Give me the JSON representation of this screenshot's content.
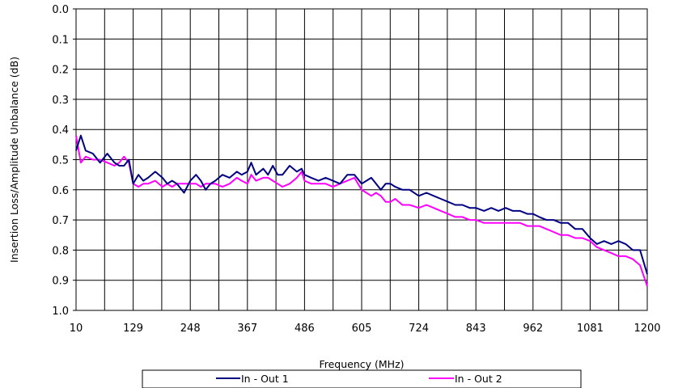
{
  "chart_data": {
    "type": "line",
    "xlabel": "Frequency (MHz)",
    "ylabel": "Insertion Loss/Amplitude Unbalance (dB)",
    "xlim": [
      10,
      1200
    ],
    "ylim": [
      0.0,
      1.0
    ],
    "y_reversed": true,
    "grid": true,
    "legend_position": "bottom",
    "x_ticks": [
      "10",
      "129",
      "248",
      "367",
      "486",
      "605",
      "724",
      "843",
      "962",
      "1081",
      "1200"
    ],
    "y_ticks": [
      "0.0",
      "0.1",
      "0.2",
      "0.3",
      "0.4",
      "0.5",
      "0.6",
      "0.7",
      "0.8",
      "0.9",
      "1.0"
    ],
    "x": [
      10,
      20,
      30,
      45,
      60,
      75,
      90,
      100,
      110,
      120,
      129,
      140,
      150,
      160,
      175,
      190,
      200,
      210,
      220,
      235,
      248,
      260,
      270,
      280,
      290,
      300,
      315,
      330,
      345,
      355,
      367,
      375,
      385,
      400,
      410,
      420,
      430,
      440,
      455,
      470,
      480,
      486,
      500,
      515,
      530,
      545,
      560,
      575,
      590,
      605,
      615,
      625,
      635,
      645,
      655,
      665,
      675,
      690,
      705,
      724,
      740,
      755,
      770,
      785,
      800,
      815,
      830,
      843,
      860,
      875,
      890,
      905,
      920,
      935,
      950,
      962,
      975,
      990,
      1005,
      1020,
      1035,
      1050,
      1065,
      1081,
      1095,
      1110,
      1125,
      1140,
      1155,
      1170,
      1185,
      1200
    ],
    "series": [
      {
        "name": "In - Out 1",
        "color": "#000080",
        "values": [
          0.47,
          0.42,
          0.47,
          0.48,
          0.51,
          0.48,
          0.51,
          0.52,
          0.52,
          0.5,
          0.58,
          0.55,
          0.57,
          0.56,
          0.54,
          0.56,
          0.58,
          0.57,
          0.58,
          0.61,
          0.57,
          0.55,
          0.57,
          0.6,
          0.58,
          0.57,
          0.55,
          0.56,
          0.54,
          0.55,
          0.54,
          0.51,
          0.55,
          0.53,
          0.55,
          0.52,
          0.55,
          0.55,
          0.52,
          0.54,
          0.53,
          0.55,
          0.56,
          0.57,
          0.56,
          0.57,
          0.58,
          0.55,
          0.55,
          0.58,
          0.57,
          0.56,
          0.58,
          0.6,
          0.58,
          0.58,
          0.59,
          0.6,
          0.6,
          0.62,
          0.61,
          0.62,
          0.63,
          0.64,
          0.65,
          0.65,
          0.66,
          0.66,
          0.67,
          0.66,
          0.67,
          0.66,
          0.67,
          0.67,
          0.68,
          0.68,
          0.69,
          0.7,
          0.7,
          0.71,
          0.71,
          0.73,
          0.73,
          0.76,
          0.78,
          0.77,
          0.78,
          0.77,
          0.78,
          0.8,
          0.8,
          0.88
        ]
      },
      {
        "name": "In - Out 2",
        "color": "#ff00ff",
        "values": [
          0.42,
          0.51,
          0.49,
          0.5,
          0.5,
          0.51,
          0.52,
          0.51,
          0.49,
          0.51,
          0.58,
          0.59,
          0.58,
          0.58,
          0.57,
          0.59,
          0.58,
          0.59,
          0.58,
          0.58,
          0.58,
          0.58,
          0.59,
          0.58,
          0.58,
          0.58,
          0.59,
          0.58,
          0.56,
          0.57,
          0.58,
          0.55,
          0.57,
          0.56,
          0.56,
          0.57,
          0.58,
          0.59,
          0.58,
          0.56,
          0.54,
          0.57,
          0.58,
          0.58,
          0.58,
          0.59,
          0.58,
          0.57,
          0.56,
          0.6,
          0.61,
          0.62,
          0.61,
          0.62,
          0.64,
          0.64,
          0.63,
          0.65,
          0.65,
          0.66,
          0.65,
          0.66,
          0.67,
          0.68,
          0.69,
          0.69,
          0.7,
          0.7,
          0.71,
          0.71,
          0.71,
          0.71,
          0.71,
          0.71,
          0.72,
          0.72,
          0.72,
          0.73,
          0.74,
          0.75,
          0.75,
          0.76,
          0.76,
          0.77,
          0.79,
          0.8,
          0.81,
          0.82,
          0.82,
          0.83,
          0.85,
          0.92
        ]
      }
    ]
  }
}
